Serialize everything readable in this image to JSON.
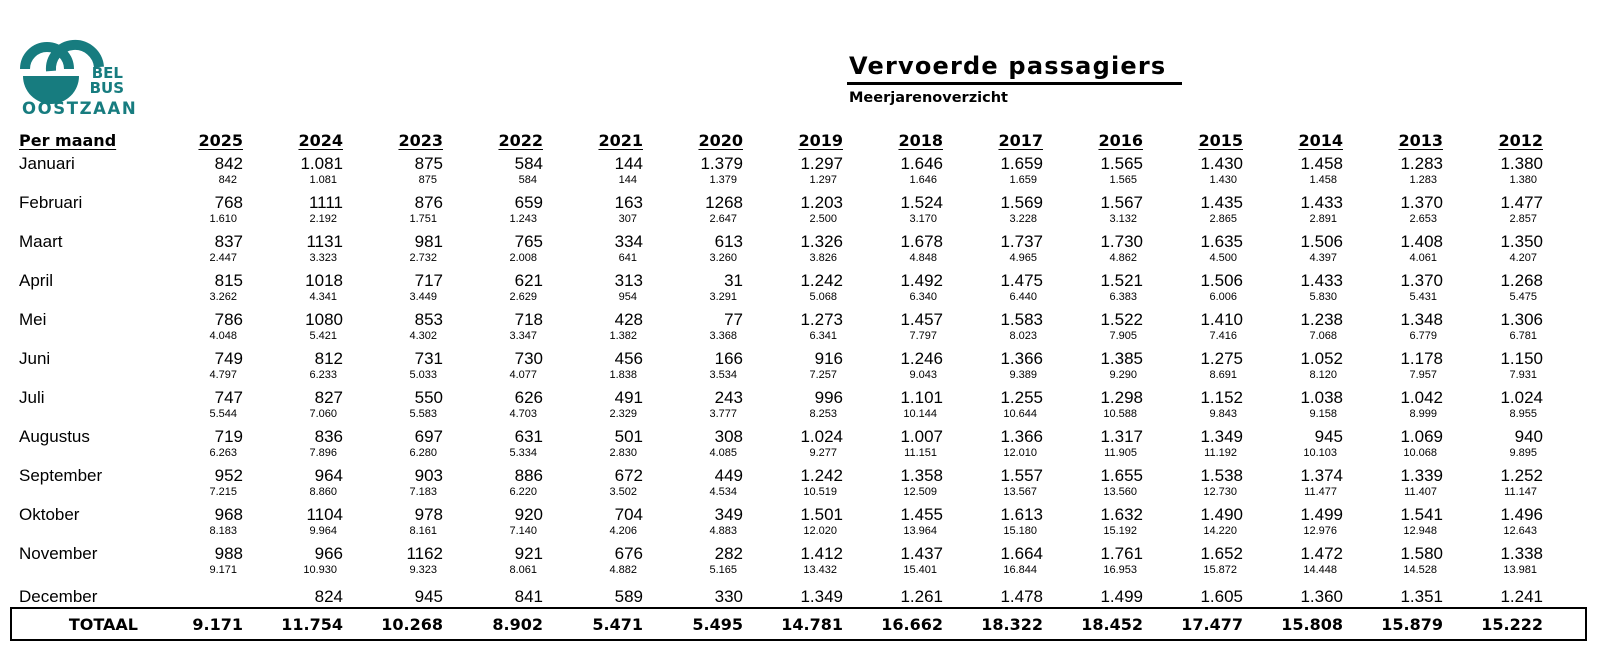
{
  "logo": {
    "color": "#177c7f",
    "line1": "BEL",
    "line2": "BUS",
    "line3": "OOSTZAAN"
  },
  "header": {
    "title": "Vervoerde passagiers",
    "subtitle": "Meerjarenoverzicht"
  },
  "table": {
    "row_header_label": "Per maand",
    "years": [
      "2025",
      "2024",
      "2023",
      "2022",
      "2021",
      "2020",
      "2019",
      "2018",
      "2017",
      "2016",
      "2015",
      "2014",
      "2013",
      "2012"
    ],
    "months": [
      {
        "label": "Januari",
        "values": [
          "842",
          "1.081",
          "875",
          "584",
          "144",
          "1.379",
          "1.297",
          "1.646",
          "1.659",
          "1.565",
          "1.430",
          "1.458",
          "1.283",
          "1.380"
        ],
        "cumulative": [
          "842",
          "1.081",
          "875",
          "584",
          "144",
          "1.379",
          "1.297",
          "1.646",
          "1.659",
          "1.565",
          "1.430",
          "1.458",
          "1.283",
          "1.380"
        ]
      },
      {
        "label": "Februari",
        "values": [
          "768",
          "1111",
          "876",
          "659",
          "163",
          "1268",
          "1.203",
          "1.524",
          "1.569",
          "1.567",
          "1.435",
          "1.433",
          "1.370",
          "1.477"
        ],
        "cumulative": [
          "1.610",
          "2.192",
          "1.751",
          "1.243",
          "307",
          "2.647",
          "2.500",
          "3.170",
          "3.228",
          "3.132",
          "2.865",
          "2.891",
          "2.653",
          "2.857"
        ]
      },
      {
        "label": "Maart",
        "values": [
          "837",
          "1131",
          "981",
          "765",
          "334",
          "613",
          "1.326",
          "1.678",
          "1.737",
          "1.730",
          "1.635",
          "1.506",
          "1.408",
          "1.350"
        ],
        "cumulative": [
          "2.447",
          "3.323",
          "2.732",
          "2.008",
          "641",
          "3.260",
          "3.826",
          "4.848",
          "4.965",
          "4.862",
          "4.500",
          "4.397",
          "4.061",
          "4.207"
        ]
      },
      {
        "label": "April",
        "values": [
          "815",
          "1018",
          "717",
          "621",
          "313",
          "31",
          "1.242",
          "1.492",
          "1.475",
          "1.521",
          "1.506",
          "1.433",
          "1.370",
          "1.268"
        ],
        "cumulative": [
          "3.262",
          "4.341",
          "3.449",
          "2.629",
          "954",
          "3.291",
          "5.068",
          "6.340",
          "6.440",
          "6.383",
          "6.006",
          "5.830",
          "5.431",
          "5.475"
        ]
      },
      {
        "label": "Mei",
        "values": [
          "786",
          "1080",
          "853",
          "718",
          "428",
          "77",
          "1.273",
          "1.457",
          "1.583",
          "1.522",
          "1.410",
          "1.238",
          "1.348",
          "1.306"
        ],
        "cumulative": [
          "4.048",
          "5.421",
          "4.302",
          "3.347",
          "1.382",
          "3.368",
          "6.341",
          "7.797",
          "8.023",
          "7.905",
          "7.416",
          "7.068",
          "6.779",
          "6.781"
        ]
      },
      {
        "label": "Juni",
        "values": [
          "749",
          "812",
          "731",
          "730",
          "456",
          "166",
          "916",
          "1.246",
          "1.366",
          "1.385",
          "1.275",
          "1.052",
          "1.178",
          "1.150"
        ],
        "cumulative": [
          "4.797",
          "6.233",
          "5.033",
          "4.077",
          "1.838",
          "3.534",
          "7.257",
          "9.043",
          "9.389",
          "9.290",
          "8.691",
          "8.120",
          "7.957",
          "7.931"
        ]
      },
      {
        "label": "Juli",
        "values": [
          "747",
          "827",
          "550",
          "626",
          "491",
          "243",
          "996",
          "1.101",
          "1.255",
          "1.298",
          "1.152",
          "1.038",
          "1.042",
          "1.024"
        ],
        "cumulative": [
          "5.544",
          "7.060",
          "5.583",
          "4.703",
          "2.329",
          "3.777",
          "8.253",
          "10.144",
          "10.644",
          "10.588",
          "9.843",
          "9.158",
          "8.999",
          "8.955"
        ]
      },
      {
        "label": "Augustus",
        "values": [
          "719",
          "836",
          "697",
          "631",
          "501",
          "308",
          "1.024",
          "1.007",
          "1.366",
          "1.317",
          "1.349",
          "945",
          "1.069",
          "940"
        ],
        "cumulative": [
          "6.263",
          "7.896",
          "6.280",
          "5.334",
          "2.830",
          "4.085",
          "9.277",
          "11.151",
          "12.010",
          "11.905",
          "11.192",
          "10.103",
          "10.068",
          "9.895"
        ]
      },
      {
        "label": "September",
        "values": [
          "952",
          "964",
          "903",
          "886",
          "672",
          "449",
          "1.242",
          "1.358",
          "1.557",
          "1.655",
          "1.538",
          "1.374",
          "1.339",
          "1.252"
        ],
        "cumulative": [
          "7.215",
          "8.860",
          "7.183",
          "6.220",
          "3.502",
          "4.534",
          "10.519",
          "12.509",
          "13.567",
          "13.560",
          "12.730",
          "11.477",
          "11.407",
          "11.147"
        ]
      },
      {
        "label": "Oktober",
        "values": [
          "968",
          "1104",
          "978",
          "920",
          "704",
          "349",
          "1.501",
          "1.455",
          "1.613",
          "1.632",
          "1.490",
          "1.499",
          "1.541",
          "1.496"
        ],
        "cumulative": [
          "8.183",
          "9.964",
          "8.161",
          "7.140",
          "4.206",
          "4.883",
          "12.020",
          "13.964",
          "15.180",
          "15.192",
          "14.220",
          "12.976",
          "12.948",
          "12.643"
        ]
      },
      {
        "label": "November",
        "values": [
          "988",
          "966",
          "1162",
          "921",
          "676",
          "282",
          "1.412",
          "1.437",
          "1.664",
          "1.761",
          "1.652",
          "1.472",
          "1.580",
          "1.338"
        ],
        "cumulative": [
          "9.171",
          "10.930",
          "9.323",
          "8.061",
          "4.882",
          "5.165",
          "13.432",
          "15.401",
          "16.844",
          "16.953",
          "15.872",
          "14.448",
          "14.528",
          "13.981"
        ]
      },
      {
        "label": "December",
        "values": [
          "",
          "824",
          "945",
          "841",
          "589",
          "330",
          "1.349",
          "1.261",
          "1.478",
          "1.499",
          "1.605",
          "1.360",
          "1.351",
          "1.241"
        ],
        "cumulative": null
      }
    ],
    "total": {
      "label": "TOTAAL",
      "values": [
        "9.171",
        "11.754",
        "10.268",
        "8.902",
        "5.471",
        "5.495",
        "14.781",
        "16.662",
        "18.322",
        "18.452",
        "17.477",
        "15.808",
        "15.879",
        "15.222"
      ]
    }
  }
}
